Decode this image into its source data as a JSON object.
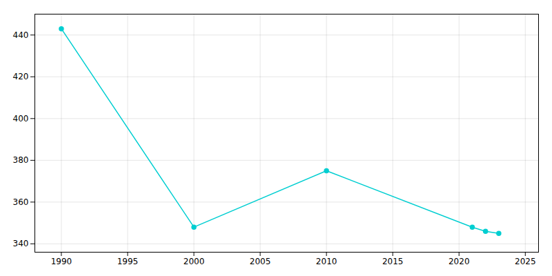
{
  "chart_data": {
    "type": "line",
    "x": [
      1990,
      2000,
      2010,
      2021,
      2022,
      2023
    ],
    "values": [
      443,
      348,
      375,
      348,
      346,
      345
    ],
    "color": "#00CED1",
    "marker": "circle",
    "xlim": [
      1988,
      2026
    ],
    "ylim": [
      336,
      450
    ],
    "xticks": [
      1990,
      1995,
      2000,
      2005,
      2010,
      2015,
      2020,
      2025
    ],
    "yticks": [
      340,
      360,
      380,
      400,
      420,
      440
    ],
    "grid": true
  }
}
